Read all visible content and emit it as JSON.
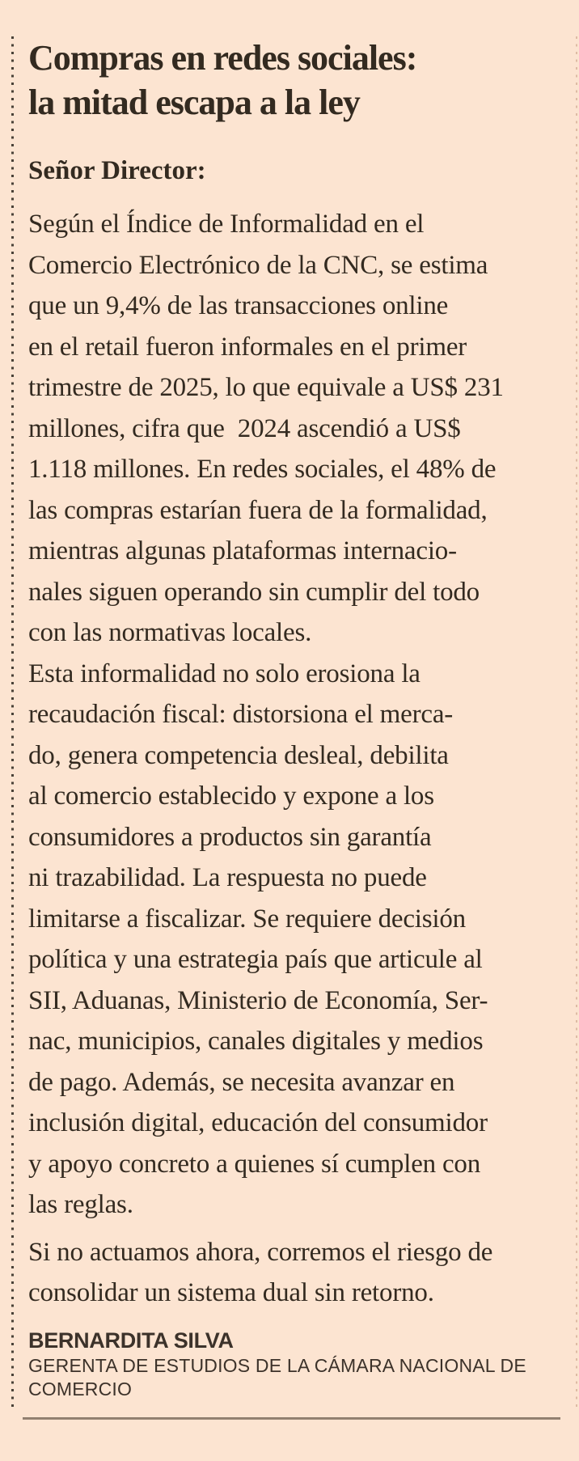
{
  "colors": {
    "bg": "#fce4d1",
    "ink": "#332a20",
    "dots": "#4a4238",
    "rule": "#94826f"
  },
  "article": {
    "title_lines": [
      "Compras en redes sociales:",
      "la mitad escapa a la ley"
    ],
    "salutation": "Señor Director:",
    "body_lines": [
      "Según el Índice de Informalidad en el",
      "Comercio Electrónico de la CNC, se estima",
      "que un 9,4% de las transacciones online",
      "en el retail fueron informales en el primer",
      "trimestre de 2025, lo que equivale a US$ 231",
      "millones, cifra que  2024 ascendió a US$",
      "1.118 millones. En redes sociales, el 48% de",
      "las compras estarían fuera de la formalidad,",
      "mientras algunas plataformas internacio-",
      "nales siguen operando sin cumplir del todo",
      "con las normativas locales.",
      "Esta informalidad no solo erosiona la",
      "recaudación fiscal: distorsiona el merca-",
      "do, genera competencia desleal, debilita",
      "al comercio establecido y expone a los",
      "consumidores a productos sin garantía",
      "ni trazabilidad. La respuesta no puede",
      "limitarse a fiscalizar. Se requiere decisión",
      "política y una estrategia país que articule al",
      "SII, Aduanas, Ministerio de Economía, Ser-",
      "nac, municipios, canales digitales y medios",
      "de pago. Además, se necesita avanzar en",
      "inclusión digital, educación del consumidor",
      "y apoyo concreto a quienes sí cumplen con",
      "las reglas.",
      "Si no actuamos ahora, corremos el riesgo de",
      "consolidar un sistema dual sin retorno."
    ],
    "signature": {
      "name": "BERNARDITA SILVA",
      "role": "GERENTA DE ESTUDIOS DE LA CÁMARA NACIONAL DE COMERCIO"
    }
  }
}
